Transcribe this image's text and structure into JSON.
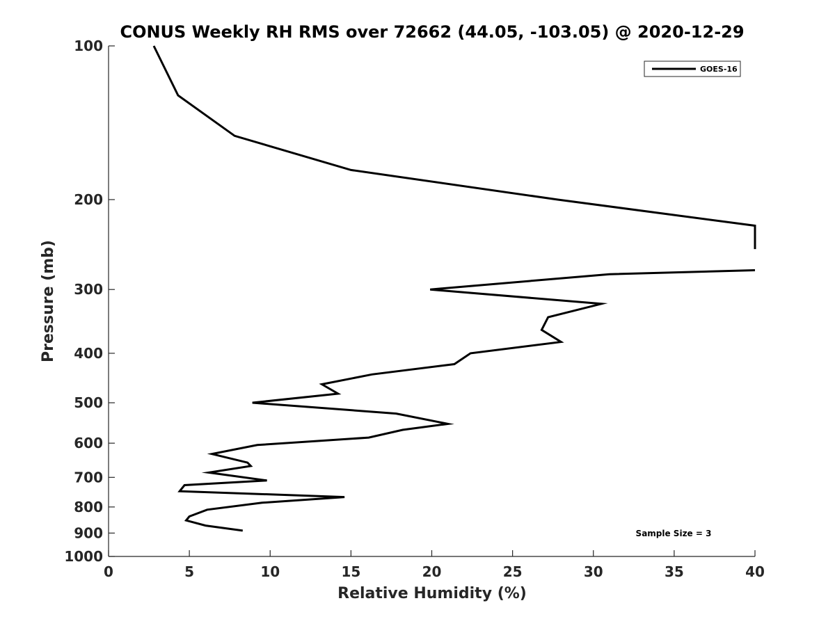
{
  "chart_data": {
    "type": "line",
    "title": "CONUS Weekly RH RMS over 72662 (44.05, -103.05) @ 2020-12-29",
    "xlabel": "Relative Humidity (%)",
    "ylabel": "Pressure (mb)",
    "xlim": [
      0,
      40
    ],
    "ylim": [
      100,
      1000
    ],
    "yscale": "log",
    "y_reversed": true,
    "grid": false,
    "x_ticks": [
      0,
      5,
      10,
      15,
      20,
      25,
      30,
      35,
      40
    ],
    "x_tick_labels": [
      "0",
      "5",
      "10",
      "15",
      "20",
      "25",
      "30",
      "35",
      "40"
    ],
    "y_ticks": [
      100,
      200,
      300,
      400,
      500,
      600,
      700,
      800,
      900,
      1000
    ],
    "y_tick_labels": [
      "100",
      "200",
      "300",
      "400",
      "500",
      "600",
      "700",
      "800",
      "900",
      "1000"
    ],
    "legend_position": "top-right",
    "annotation": "Sample Size = 3",
    "series": [
      {
        "name": "GOES-16",
        "color": "#000000",
        "segments": [
          [
            {
              "x": 2.8,
              "p": 100
            },
            {
              "x": 4.3,
              "p": 125
            },
            {
              "x": 7.8,
              "p": 150
            },
            {
              "x": 15.0,
              "p": 175
            },
            {
              "x": 27.8,
              "p": 200
            },
            {
              "x": 40.0,
              "p": 225
            },
            {
              "x": 40.0,
              "p": 250
            }
          ],
          [
            {
              "x": 40.0,
              "p": 275
            },
            {
              "x": 31.0,
              "p": 280
            },
            {
              "x": 19.9,
              "p": 300
            },
            {
              "x": 30.5,
              "p": 320
            },
            {
              "x": 27.2,
              "p": 340
            },
            {
              "x": 26.8,
              "p": 360
            },
            {
              "x": 28.0,
              "p": 380
            },
            {
              "x": 22.4,
              "p": 400
            },
            {
              "x": 21.4,
              "p": 420
            },
            {
              "x": 16.3,
              "p": 440
            },
            {
              "x": 13.2,
              "p": 460
            },
            {
              "x": 14.2,
              "p": 480
            },
            {
              "x": 8.9,
              "p": 500
            },
            {
              "x": 17.8,
              "p": 525
            },
            {
              "x": 21.0,
              "p": 550
            },
            {
              "x": 18.2,
              "p": 565
            },
            {
              "x": 16.1,
              "p": 585
            },
            {
              "x": 9.2,
              "p": 605
            },
            {
              "x": 6.4,
              "p": 630
            },
            {
              "x": 8.6,
              "p": 655
            },
            {
              "x": 8.8,
              "p": 665
            },
            {
              "x": 6.2,
              "p": 685
            },
            {
              "x": 9.8,
              "p": 710
            },
            {
              "x": 4.7,
              "p": 725
            },
            {
              "x": 4.4,
              "p": 745
            },
            {
              "x": 14.6,
              "p": 765
            },
            {
              "x": 9.5,
              "p": 785
            },
            {
              "x": 6.1,
              "p": 810
            },
            {
              "x": 5.0,
              "p": 835
            },
            {
              "x": 4.8,
              "p": 850
            },
            {
              "x": 6.0,
              "p": 870
            },
            {
              "x": 8.3,
              "p": 890
            }
          ]
        ]
      }
    ]
  }
}
